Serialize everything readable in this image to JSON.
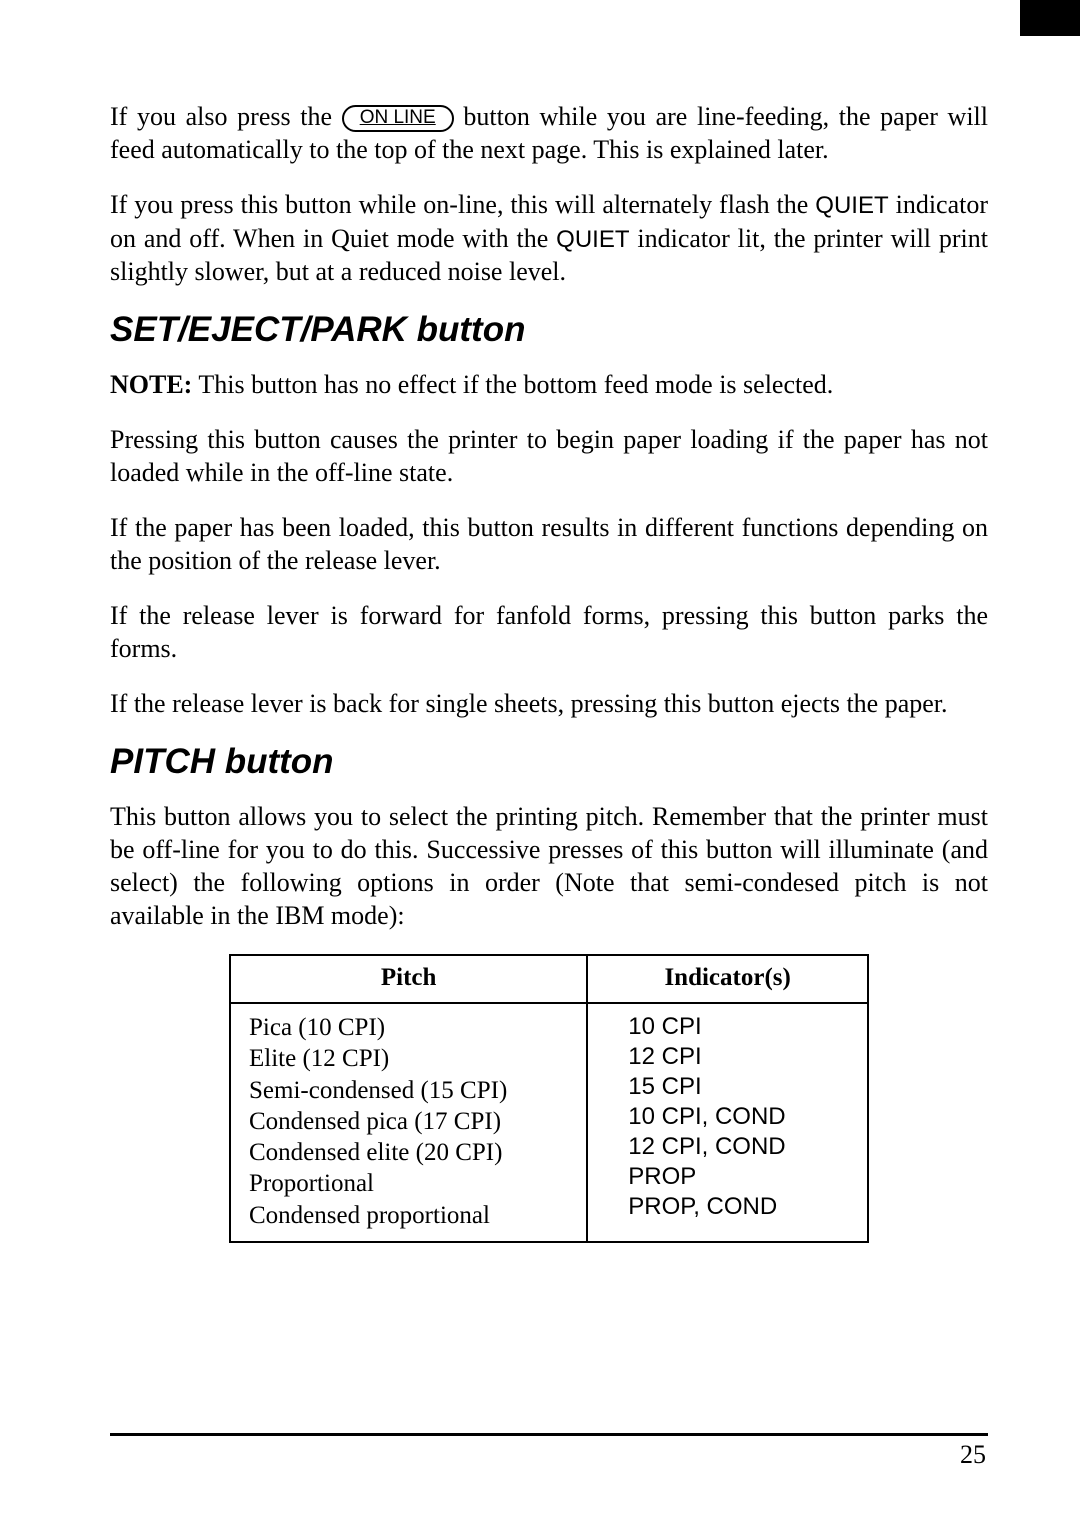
{
  "para1_pre": "If you also press the ",
  "button_label": "ON LINE",
  "para1_post": " button while you are line-feeding, the paper will feed automatically to the top of the next page. This is explained later.",
  "para2_a": "If you press this button while on-line, this will alternately flash the ",
  "para2_q1": "QUIET",
  "para2_b": " indicator on and off. When in Quiet mode with the ",
  "para2_q2": "QUIET",
  "para2_c": " indicator lit, the printer will print slightly slower, but at a reduced noise level.",
  "section1": "SET/EJECT/PARK button",
  "note_label": "NOTE:",
  "note_text": " This button has no effect if the bottom feed mode is selected.",
  "sec1_p1": "Pressing this button causes the printer to begin paper loading if the paper has not loaded while in the off-line state.",
  "sec1_p2": "If the paper has been loaded, this button results in different functions depending on the position of the release lever.",
  "sec1_p3": "If the release lever is forward for fanfold forms, pressing this button parks the forms.",
  "sec1_p4": "If the release lever is back for single sheets, pressing this button ejects the paper.",
  "section2": "PITCH button",
  "sec2_p1": "This button allows you to select the printing pitch. Remember that the printer must be off-line for you to do this. Successive presses of this button will illuminate (and select) the following options in order (Note that semi-condesed pitch is not available in the IBM mode):",
  "table": {
    "head_pitch": "Pitch",
    "head_ind": "Indicator(s)",
    "rows": [
      {
        "pitch": "Pica (10 CPI)",
        "ind": "10 CPI"
      },
      {
        "pitch": "Elite (12 CPI)",
        "ind": "12 CPI"
      },
      {
        "pitch": "Semi-condensed (15 CPI)",
        "ind": "15 CPI"
      },
      {
        "pitch": "Condensed pica (17 CPI)",
        "ind": "10 CPI, COND"
      },
      {
        "pitch": "Condensed elite (20 CPI)",
        "ind": "12 CPI, COND"
      },
      {
        "pitch": "Proportional",
        "ind": "PROP"
      },
      {
        "pitch": "Condensed proportional",
        "ind": "PROP, COND"
      }
    ]
  },
  "page_number": "25"
}
